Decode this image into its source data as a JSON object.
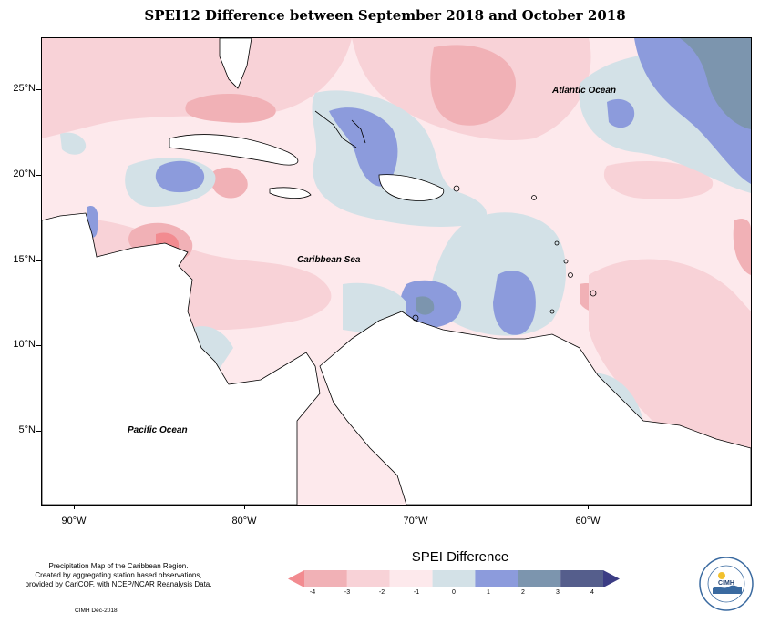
{
  "title": "SPEI12 Difference between September 2018 and October 2018",
  "map": {
    "ocean_labels": {
      "atlantic": "Atlantic Ocean",
      "caribbean": "Caribbean Sea",
      "pacific": "Pacific Ocean"
    },
    "latitude_labels": [
      "25°N",
      "20°N",
      "15°N",
      "10°N",
      "5°N"
    ],
    "longitude_labels": [
      "90°W",
      "80°W",
      "70°W",
      "60°W"
    ]
  },
  "legend": {
    "title": "SPEI Difference",
    "ticks": [
      "-4",
      "-3",
      "-2",
      "-1",
      "0",
      "1",
      "2",
      "3",
      "4"
    ],
    "colors": [
      "#f28b90",
      "#f1b1b6",
      "#f8d2d7",
      "#fde9ec",
      "#d3e1e7",
      "#8c9bdc",
      "#7c95ae",
      "#555e8c",
      "#3b3c84"
    ]
  },
  "credits": {
    "lines": [
      "Precipitation Map of the Caribbean Region.",
      "Created by aggregating station based observations,",
      "provided by CariCOF, with NCEP/NCAR Reanalysis Data."
    ],
    "stamp": "CIMH Dec-2018"
  },
  "logo": {
    "text": "CIMH",
    "icon": "cimh-logo-icon"
  }
}
